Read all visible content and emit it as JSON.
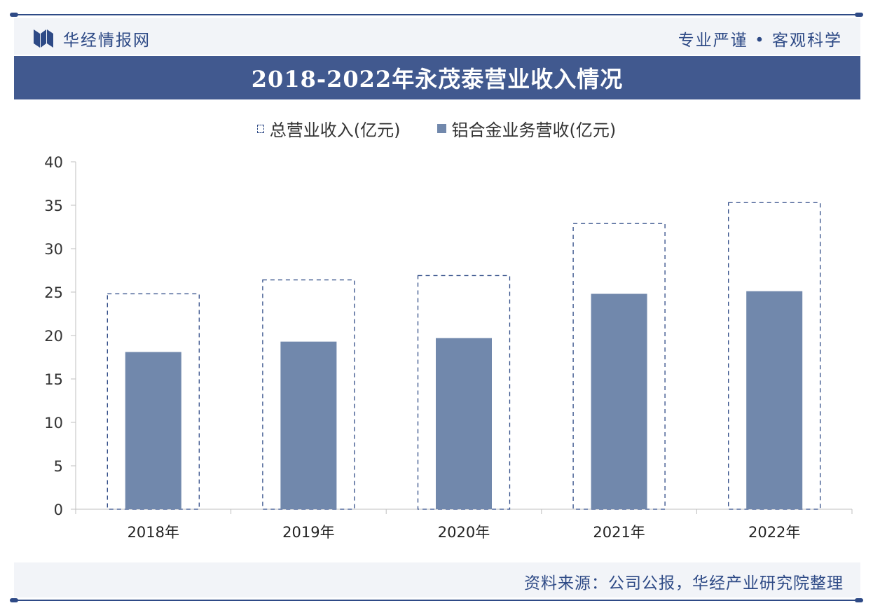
{
  "header": {
    "brand": "华经情报网",
    "slogan": "专业严谨 • 客观科学"
  },
  "footer": {
    "source": "资料来源：公司公报，华经产业研究院整理"
  },
  "colors": {
    "primary": "#2e4a86",
    "bar": "#7188ac",
    "axis": "#bfbfbf"
  },
  "chart_data": {
    "type": "bar",
    "title": "2018-2022年永茂泰营业收入情况",
    "categories": [
      "2018年",
      "2019年",
      "2020年",
      "2021年",
      "2022年"
    ],
    "series": [
      {
        "name": "总营业收入(亿元)",
        "style": "dashed-outline",
        "values": [
          24.8,
          26.4,
          26.9,
          32.9,
          35.3
        ]
      },
      {
        "name": "铝合金业务营收(亿元)",
        "style": "solid",
        "values": [
          18.1,
          19.3,
          19.7,
          24.8,
          25.1
        ]
      }
    ],
    "ylim": [
      0,
      40
    ],
    "yticks": [
      0,
      5,
      10,
      15,
      20,
      25,
      30,
      35,
      40
    ],
    "xlabel": "",
    "ylabel": "",
    "legend_position": "top-center",
    "grid": false
  }
}
